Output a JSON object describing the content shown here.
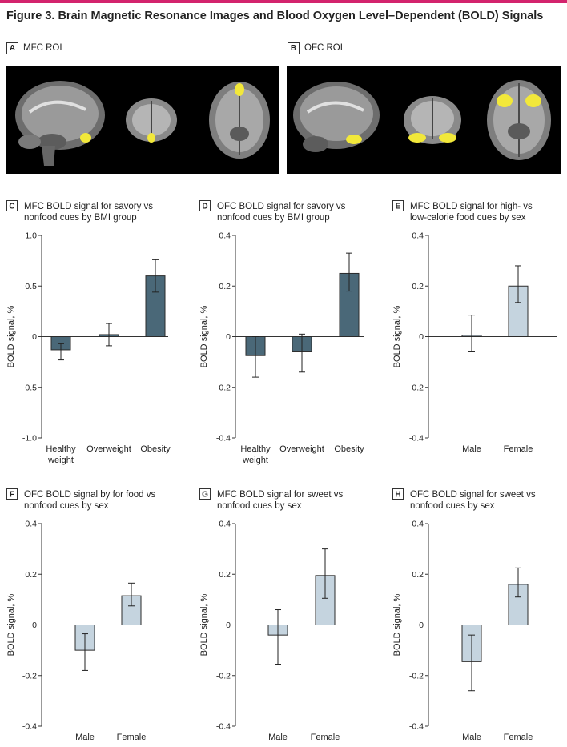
{
  "figure": {
    "title": "Figure 3. Brain Magnetic Resonance Images and Blood Oxygen Level–Dependent (BOLD) Signals",
    "accent_color": "#d3236d"
  },
  "roi_panels": [
    {
      "letter": "A",
      "title": "MFC ROI",
      "highlight_color": "#f2e83a"
    },
    {
      "letter": "B",
      "title": "OFC ROI",
      "highlight_color": "#f2e83a"
    }
  ],
  "colors": {
    "dark_bar": "#4a6878",
    "light_bar": "#c5d4df",
    "bar_stroke": "#2b2b2b"
  },
  "chart_data": [
    {
      "letter": "C",
      "type": "bar",
      "title_lines": [
        "MFC BOLD signal for savory vs",
        "nonfood cues by BMI group"
      ],
      "ylabel": "BOLD signal, %",
      "ylim": [
        -1.0,
        1.0
      ],
      "yticks": [
        {
          "v": 1.0,
          "label": "1.0"
        },
        {
          "v": 0.5,
          "label": "0.5"
        },
        {
          "v": 0,
          "label": "0"
        },
        {
          "v": -0.5,
          "label": "-0.5"
        },
        {
          "v": -1.0,
          "label": "-1.0"
        }
      ],
      "categories": [
        [
          "Healthy",
          "weight"
        ],
        [
          "Overweight"
        ],
        [
          "Obesity"
        ]
      ],
      "values": [
        -0.13,
        0.02,
        0.6
      ],
      "err_low": [
        -0.23,
        -0.09,
        0.44
      ],
      "err_high": [
        -0.07,
        0.13,
        0.76
      ],
      "bar_color": "dark"
    },
    {
      "letter": "D",
      "type": "bar",
      "title_lines": [
        "OFC BOLD signal for savory vs",
        "nonfood cues by BMI group"
      ],
      "ylabel": "BOLD signal, %",
      "ylim": [
        -0.4,
        0.4
      ],
      "yticks": [
        {
          "v": 0.4,
          "label": "0.4"
        },
        {
          "v": 0.2,
          "label": "0.2"
        },
        {
          "v": 0,
          "label": "0"
        },
        {
          "v": -0.2,
          "label": "-0.2"
        },
        {
          "v": -0.4,
          "label": "-0.4"
        }
      ],
      "categories": [
        [
          "Healthy",
          "weight"
        ],
        [
          "Overweight"
        ],
        [
          "Obesity"
        ]
      ],
      "values": [
        -0.075,
        -0.06,
        0.25
      ],
      "err_low": [
        -0.16,
        -0.14,
        0.18
      ],
      "err_high": [
        0.0,
        0.01,
        0.33
      ],
      "bar_color": "dark"
    },
    {
      "letter": "E",
      "type": "bar",
      "title_lines": [
        "MFC BOLD signal for high- vs",
        "low-calorie food cues by sex"
      ],
      "ylabel": "BOLD signal, %",
      "ylim": [
        -0.4,
        0.4
      ],
      "yticks": [
        {
          "v": 0.4,
          "label": "0.4"
        },
        {
          "v": 0.2,
          "label": "0.2"
        },
        {
          "v": 0,
          "label": "0"
        },
        {
          "v": -0.2,
          "label": "-0.2"
        },
        {
          "v": -0.4,
          "label": "-0.4"
        }
      ],
      "categories": [
        [
          "Male"
        ],
        [
          "Female"
        ]
      ],
      "values": [
        0.005,
        0.2
      ],
      "err_low": [
        -0.06,
        0.135
      ],
      "err_high": [
        0.085,
        0.28
      ],
      "bar_color": "light"
    },
    {
      "letter": "F",
      "type": "bar",
      "title_lines": [
        "OFC BOLD signal by for food vs",
        "nonfood cues by sex"
      ],
      "ylabel": "BOLD signal, %",
      "ylim": [
        -0.4,
        0.4
      ],
      "yticks": [
        {
          "v": 0.4,
          "label": "0.4"
        },
        {
          "v": 0.2,
          "label": "0.2"
        },
        {
          "v": 0,
          "label": "0"
        },
        {
          "v": -0.2,
          "label": "-0.2"
        },
        {
          "v": -0.4,
          "label": "-0.4"
        }
      ],
      "categories": [
        [
          "Male"
        ],
        [
          "Female"
        ]
      ],
      "values": [
        -0.1,
        0.115
      ],
      "err_low": [
        -0.18,
        0.075
      ],
      "err_high": [
        -0.035,
        0.165
      ],
      "bar_color": "light"
    },
    {
      "letter": "G",
      "type": "bar",
      "title_lines": [
        "MFC BOLD signal for sweet vs",
        "nonfood cues by sex"
      ],
      "ylabel": "BOLD signal, %",
      "ylim": [
        -0.4,
        0.4
      ],
      "yticks": [
        {
          "v": 0.4,
          "label": "0.4"
        },
        {
          "v": 0.2,
          "label": "0.2"
        },
        {
          "v": 0,
          "label": "0"
        },
        {
          "v": -0.2,
          "label": "-0.2"
        },
        {
          "v": -0.4,
          "label": "-0.4"
        }
      ],
      "categories": [
        [
          "Male"
        ],
        [
          "Female"
        ]
      ],
      "values": [
        -0.04,
        0.195
      ],
      "err_low": [
        -0.155,
        0.105
      ],
      "err_high": [
        0.06,
        0.3
      ],
      "bar_color": "light"
    },
    {
      "letter": "H",
      "type": "bar",
      "title_lines": [
        "OFC BOLD signal for sweet vs",
        "nonfood cues by sex"
      ],
      "ylabel": "BOLD signal, %",
      "ylim": [
        -0.4,
        0.4
      ],
      "yticks": [
        {
          "v": 0.4,
          "label": "0.4"
        },
        {
          "v": 0.2,
          "label": "0.2"
        },
        {
          "v": 0,
          "label": "0"
        },
        {
          "v": -0.2,
          "label": "-0.2"
        },
        {
          "v": -0.4,
          "label": "-0.4"
        }
      ],
      "categories": [
        [
          "Male"
        ],
        [
          "Female"
        ]
      ],
      "values": [
        -0.145,
        0.16
      ],
      "err_low": [
        -0.26,
        0.11
      ],
      "err_high": [
        -0.04,
        0.225
      ],
      "bar_color": "light"
    }
  ]
}
